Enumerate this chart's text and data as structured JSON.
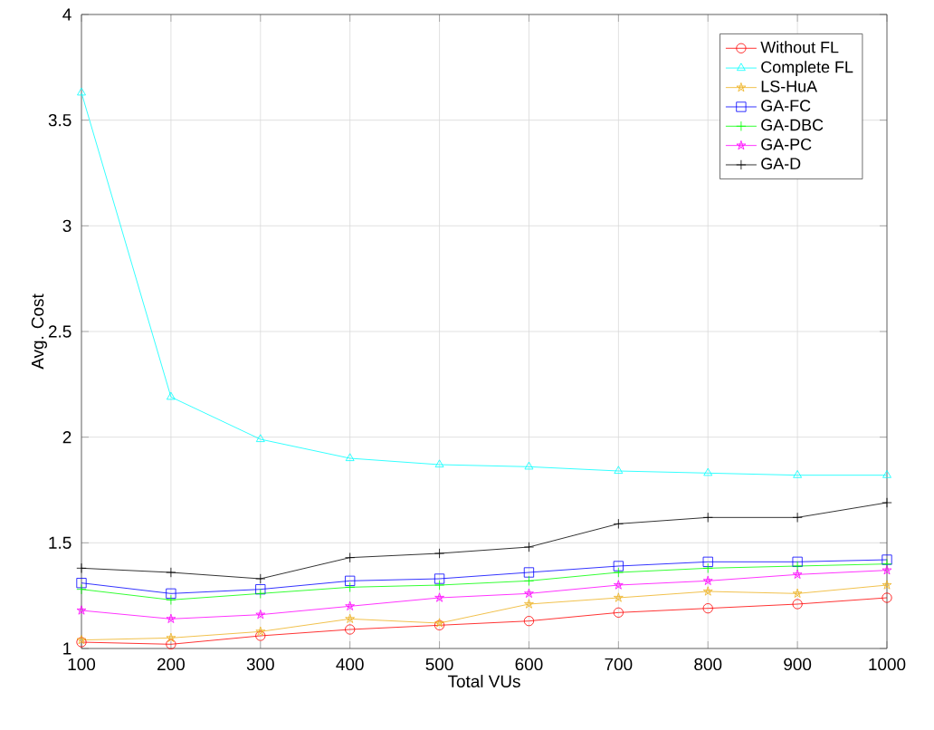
{
  "chart_data": {
    "type": "line",
    "xlabel": "Total VUs",
    "ylabel": "Avg. Cost",
    "x": [
      100,
      200,
      300,
      400,
      500,
      600,
      700,
      800,
      900,
      1000
    ],
    "xlim": [
      100,
      1000
    ],
    "xticks": [
      100,
      200,
      300,
      400,
      500,
      600,
      700,
      800,
      900,
      1000
    ],
    "ylim": [
      1,
      4
    ],
    "yticks": [
      1,
      1.5,
      2,
      2.5,
      3,
      3.5,
      4
    ],
    "grid": true,
    "legend": "top right",
    "series": [
      {
        "name": "Without FL",
        "color": "#ff0000",
        "marker": "circle",
        "values": [
          1.03,
          1.02,
          1.06,
          1.09,
          1.11,
          1.13,
          1.17,
          1.19,
          1.21,
          1.24
        ]
      },
      {
        "name": "Complete FL",
        "color": "#00ffff",
        "marker": "triangle",
        "values": [
          3.63,
          2.19,
          1.99,
          1.9,
          1.87,
          1.86,
          1.84,
          1.83,
          1.82,
          1.82
        ]
      },
      {
        "name": "LS-HuA",
        "color": "#edb120",
        "marker": "star",
        "values": [
          1.04,
          1.05,
          1.08,
          1.14,
          1.12,
          1.21,
          1.24,
          1.27,
          1.26,
          1.3
        ]
      },
      {
        "name": "GA-FC",
        "color": "#0000ff",
        "marker": "square",
        "values": [
          1.31,
          1.26,
          1.28,
          1.32,
          1.33,
          1.36,
          1.39,
          1.41,
          1.41,
          1.42
        ]
      },
      {
        "name": "GA-DBC",
        "color": "#00ff00",
        "marker": "cross",
        "values": [
          1.28,
          1.23,
          1.26,
          1.29,
          1.3,
          1.32,
          1.36,
          1.38,
          1.39,
          1.4
        ]
      },
      {
        "name": "GA-PC",
        "color": "#ff00ff",
        "marker": "star",
        "values": [
          1.18,
          1.14,
          1.16,
          1.2,
          1.24,
          1.26,
          1.3,
          1.32,
          1.35,
          1.37
        ]
      },
      {
        "name": "GA-D",
        "color": "#000000",
        "marker": "cross",
        "values": [
          1.38,
          1.36,
          1.33,
          1.43,
          1.45,
          1.48,
          1.59,
          1.62,
          1.62,
          1.69
        ]
      }
    ]
  }
}
